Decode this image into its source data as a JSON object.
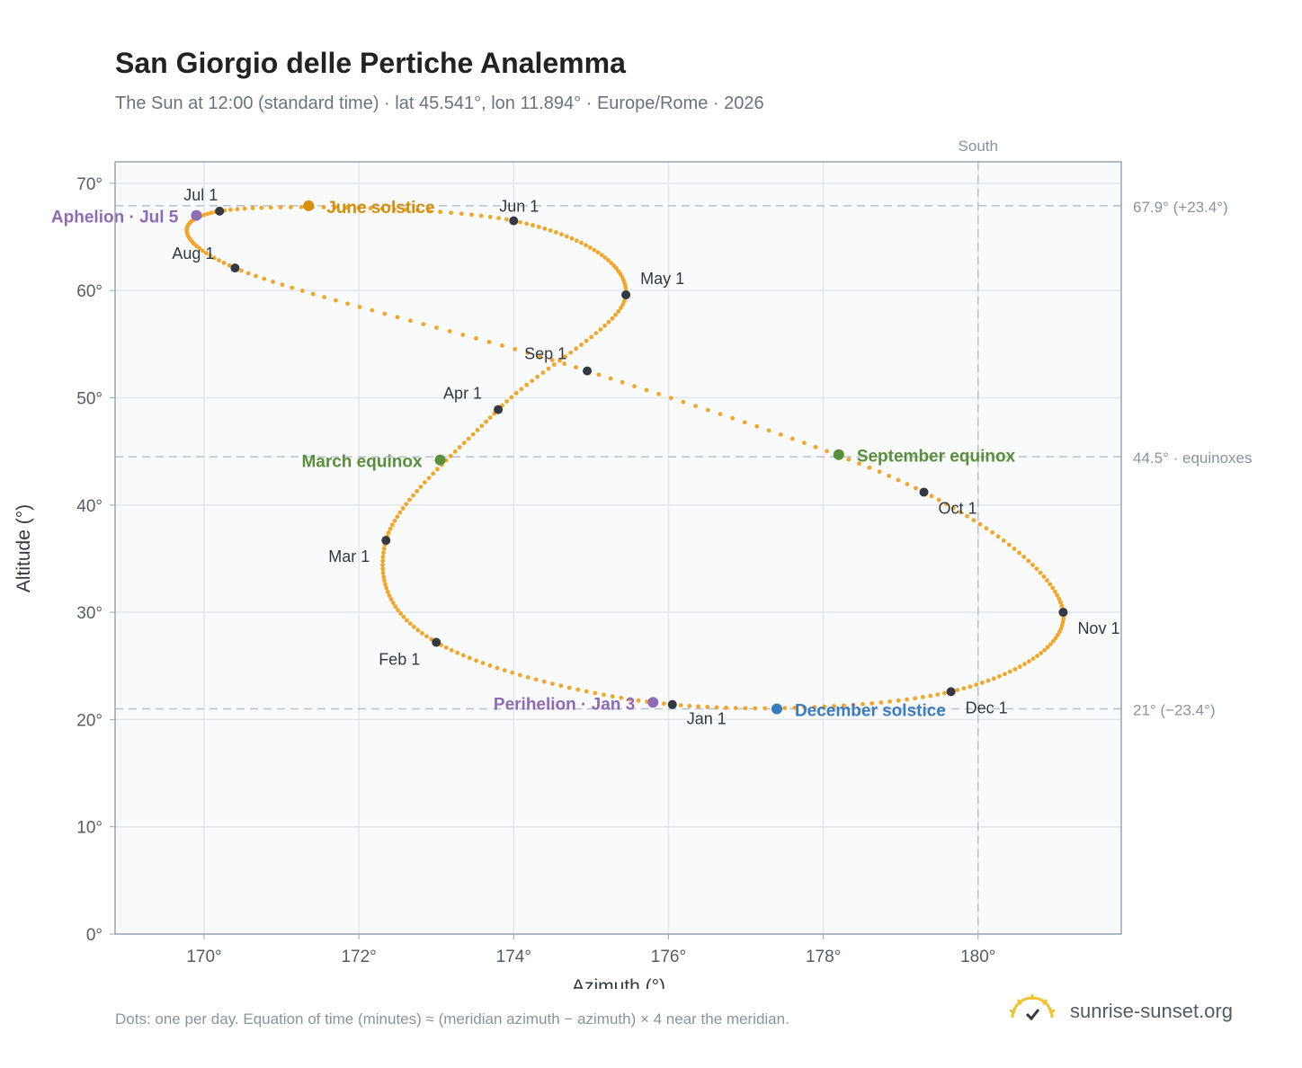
{
  "header": {
    "title": "San Giorgio delle Pertiche Analemma",
    "subtitle": "The Sun at 12:00 (standard time) · lat 45.541°, lon 11.894° · Europe/Rome · 2026"
  },
  "footer": {
    "note": "Dots: one per day. Equation of time (minutes) ≈ (meridian azimuth − azimuth) × 4 near the meridian.",
    "brand": "sunrise-sunset.org"
  },
  "colors": {
    "curve": "#f2a62a",
    "month_marker": "#333842",
    "solstice_june": "#d4900a",
    "solstice_december": "#3b7bbf",
    "equinox": "#5a8f3a",
    "apsis": "#8e6bb5",
    "reference_line": "#b7c2cc",
    "plot_background": "#f8fafc",
    "frame": "#9aa5b1"
  },
  "chart_data": {
    "type": "scatter",
    "title": "San Giorgio delle Pertiche Analemma",
    "xlabel": "Azimuth (°)",
    "ylabel": "Altitude (°)",
    "xlim": [
      168.85,
      181.85
    ],
    "ylim": [
      0,
      72
    ],
    "x_ticks": [
      170,
      172,
      174,
      176,
      178,
      180
    ],
    "x_tick_labels": [
      "170°",
      "172°",
      "174°",
      "176°",
      "178°",
      "180°"
    ],
    "y_ticks": [
      0,
      10,
      20,
      30,
      40,
      50,
      60,
      70
    ],
    "y_tick_labels": [
      "0°",
      "10°",
      "20°",
      "30°",
      "40°",
      "50°",
      "60°",
      "70°"
    ],
    "grid": true,
    "meridian": {
      "x": 180,
      "label": "South"
    },
    "reference_lines": [
      {
        "y": 67.9,
        "label": "67.9° (+23.4°)"
      },
      {
        "y": 44.5,
        "label": "44.5° · equinoxes"
      },
      {
        "y": 21.0,
        "label": "21° (−23.4°)"
      }
    ],
    "month_points": [
      {
        "label": "Jan 1",
        "az": 176.05,
        "alt": 21.4
      },
      {
        "label": "Feb 1",
        "az": 173.0,
        "alt": 27.2
      },
      {
        "label": "Mar 1",
        "az": 172.35,
        "alt": 36.7
      },
      {
        "label": "Apr 1",
        "az": 173.8,
        "alt": 48.9
      },
      {
        "label": "May 1",
        "az": 175.45,
        "alt": 59.6
      },
      {
        "label": "Jun 1",
        "az": 174.0,
        "alt": 66.5
      },
      {
        "label": "Jul 1",
        "az": 170.2,
        "alt": 67.4
      },
      {
        "label": "Aug 1",
        "az": 170.4,
        "alt": 62.1
      },
      {
        "label": "Sep 1",
        "az": 174.95,
        "alt": 52.5
      },
      {
        "label": "Oct 1",
        "az": 179.3,
        "alt": 41.2
      },
      {
        "label": "Nov 1",
        "az": 181.1,
        "alt": 30.0
      },
      {
        "label": "Dec 1",
        "az": 179.65,
        "alt": 22.6
      }
    ],
    "events": [
      {
        "label": "June solstice",
        "az": 171.35,
        "alt": 67.9,
        "kind": "solstice_june"
      },
      {
        "label": "December solstice",
        "az": 177.4,
        "alt": 21.0,
        "kind": "solstice_december"
      },
      {
        "label": "March equinox",
        "az": 173.05,
        "alt": 44.2,
        "kind": "equinox"
      },
      {
        "label": "September equinox",
        "az": 178.2,
        "alt": 44.7,
        "kind": "equinox"
      },
      {
        "label": "Aphelion · Jul 5",
        "az": 169.9,
        "alt": 67.0,
        "kind": "apsis"
      },
      {
        "label": "Perihelion · Jan 3",
        "az": 175.8,
        "alt": 21.6,
        "kind": "apsis"
      }
    ]
  }
}
